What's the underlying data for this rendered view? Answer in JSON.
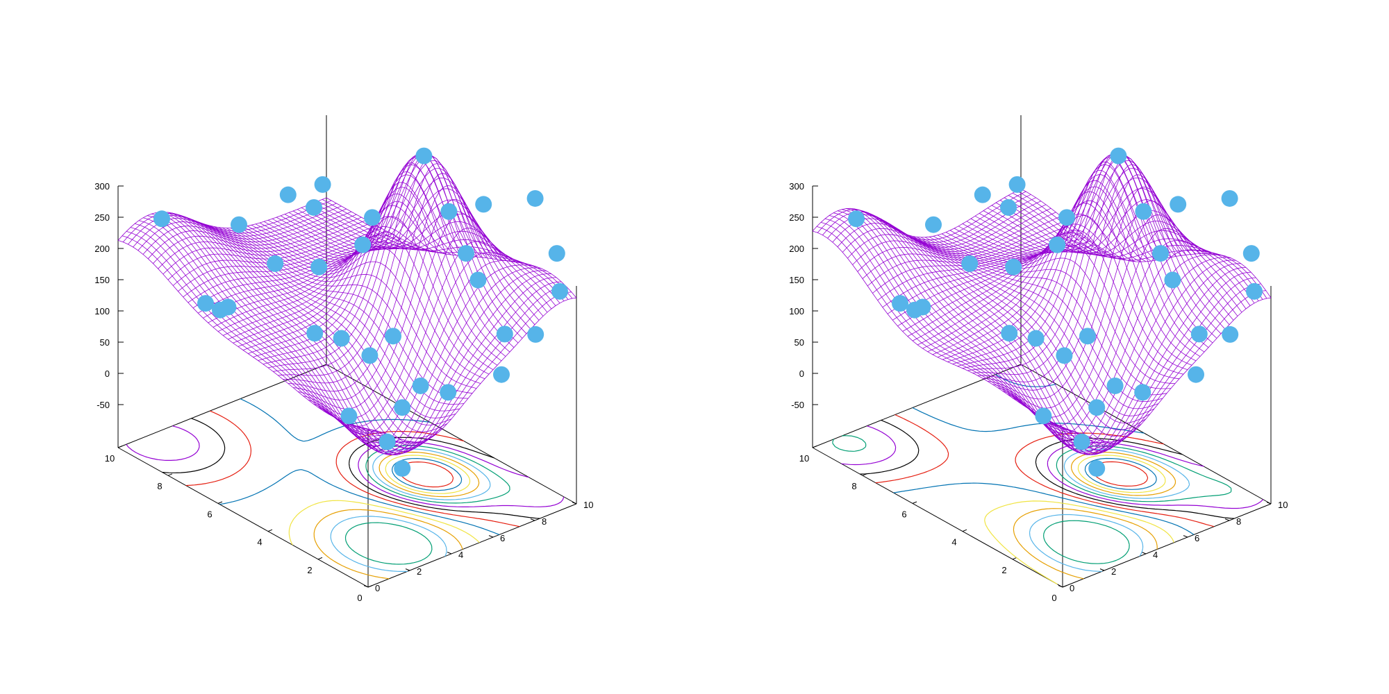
{
  "colors": {
    "surface": "#9400d3",
    "points": "#56b4e9",
    "axis": "#000000",
    "contours": [
      "#009e73",
      "#56b4e9",
      "#e69f00",
      "#f0e442",
      "#0072b2",
      "#e51e10",
      "#000000",
      "#9400d3"
    ]
  },
  "chart_data": [
    {
      "type": "surface",
      "xlim": [
        0,
        10
      ],
      "ylim": [
        0,
        10
      ],
      "zlim": [
        -50,
        300
      ],
      "x_ticks": [
        "0",
        "2",
        "4",
        "6",
        "8",
        "10"
      ],
      "y_ticks": [
        "0",
        "2",
        "4",
        "6",
        "8",
        "10"
      ],
      "z_ticks": [
        "-50",
        "0",
        "50",
        "100",
        "150",
        "200",
        "250",
        "300"
      ],
      "grid": false,
      "contours_on_base": true,
      "surface_style": "mesh",
      "points": [
        {
          "x": 9.0,
          "y": 0.9,
          "z": 150
        },
        {
          "x": 7.0,
          "y": 2.2,
          "z": 168
        },
        {
          "x": 6.2,
          "y": 3.6,
          "z": 215
        },
        {
          "x": 5.4,
          "y": 4.3,
          "z": 240
        },
        {
          "x": 5.5,
          "y": 4.0,
          "z": 205
        },
        {
          "x": 4.3,
          "y": 4.9,
          "z": 160
        },
        {
          "x": 4.5,
          "y": 5.6,
          "z": 190
        },
        {
          "x": 3.6,
          "y": 7.0,
          "z": 290
        },
        {
          "x": 3.6,
          "y": 8.2,
          "z": 185
        },
        {
          "x": 2.8,
          "y": 8.9,
          "z": 205
        },
        {
          "x": 1.4,
          "y": 9.7,
          "z": 235
        },
        {
          "x": 0.7,
          "y": 9.9,
          "z": 160
        },
        {
          "x": 0.5,
          "y": 9.8,
          "z": 105
        },
        {
          "x": 3.0,
          "y": 8.3,
          "z": 130
        },
        {
          "x": 2.6,
          "y": 8.4,
          "z": 95
        },
        {
          "x": 8.0,
          "y": 2.5,
          "z": 5
        },
        {
          "x": 7.6,
          "y": 2.4,
          "z": 20
        },
        {
          "x": 8.0,
          "y": 1.8,
          "z": 25
        },
        {
          "x": 6.8,
          "y": 3.7,
          "z": 90
        },
        {
          "x": 5.8,
          "y": 4.6,
          "z": 95
        },
        {
          "x": 4.8,
          "y": 3.2,
          "z": 30
        },
        {
          "x": 4.4,
          "y": 4.0,
          "z": 20
        },
        {
          "x": 3.5,
          "y": 5.4,
          "z": 25
        },
        {
          "x": 1.2,
          "y": 8.0,
          "z": 45
        },
        {
          "x": 0.8,
          "y": 9.0,
          "z": 40
        },
        {
          "x": 3.6,
          "y": 4.4,
          "z": 5
        },
        {
          "x": 2.4,
          "y": 5.4,
          "z": -30
        },
        {
          "x": 1.8,
          "y": 6.0,
          "z": -35
        },
        {
          "x": 1.0,
          "y": 7.6,
          "z": -10
        },
        {
          "x": 1.8,
          "y": 3.8,
          "z": -30
        },
        {
          "x": 1.4,
          "y": 2.6,
          "z": -60
        },
        {
          "x": 0.3,
          "y": 2.0,
          "z": -70
        },
        {
          "x": 2.6,
          "y": 2.2,
          "z": -40
        }
      ]
    },
    {
      "type": "surface",
      "xlim": [
        0,
        10
      ],
      "ylim": [
        0,
        10
      ],
      "zlim": [
        -50,
        300
      ],
      "x_ticks": [
        "0",
        "2",
        "4",
        "6",
        "8",
        "10"
      ],
      "y_ticks": [
        "0",
        "2",
        "4",
        "6",
        "8",
        "10"
      ],
      "z_ticks": [
        "-50",
        "0",
        "50",
        "100",
        "150",
        "200",
        "250",
        "300"
      ],
      "grid": false,
      "contours_on_base": true,
      "surface_style": "mesh",
      "points": [
        {
          "x": 9.0,
          "y": 0.9,
          "z": 150
        },
        {
          "x": 7.0,
          "y": 2.2,
          "z": 168
        },
        {
          "x": 6.2,
          "y": 3.6,
          "z": 215
        },
        {
          "x": 5.4,
          "y": 4.3,
          "z": 240
        },
        {
          "x": 5.5,
          "y": 4.0,
          "z": 205
        },
        {
          "x": 4.3,
          "y": 4.9,
          "z": 160
        },
        {
          "x": 4.5,
          "y": 5.6,
          "z": 190
        },
        {
          "x": 3.6,
          "y": 7.0,
          "z": 290
        },
        {
          "x": 3.6,
          "y": 8.2,
          "z": 185
        },
        {
          "x": 2.8,
          "y": 8.9,
          "z": 205
        },
        {
          "x": 1.4,
          "y": 9.7,
          "z": 235
        },
        {
          "x": 0.7,
          "y": 9.9,
          "z": 160
        },
        {
          "x": 0.5,
          "y": 9.8,
          "z": 105
        },
        {
          "x": 3.0,
          "y": 8.3,
          "z": 130
        },
        {
          "x": 2.6,
          "y": 8.4,
          "z": 95
        },
        {
          "x": 8.0,
          "y": 2.5,
          "z": 5
        },
        {
          "x": 7.6,
          "y": 2.4,
          "z": 20
        },
        {
          "x": 8.0,
          "y": 1.8,
          "z": 25
        },
        {
          "x": 6.8,
          "y": 3.7,
          "z": 90
        },
        {
          "x": 5.8,
          "y": 4.6,
          "z": 95
        },
        {
          "x": 4.8,
          "y": 3.2,
          "z": 30
        },
        {
          "x": 4.4,
          "y": 4.0,
          "z": 20
        },
        {
          "x": 3.5,
          "y": 5.4,
          "z": 25
        },
        {
          "x": 1.2,
          "y": 8.0,
          "z": 45
        },
        {
          "x": 0.8,
          "y": 9.0,
          "z": 40
        },
        {
          "x": 3.6,
          "y": 4.4,
          "z": 5
        },
        {
          "x": 2.4,
          "y": 5.4,
          "z": -30
        },
        {
          "x": 1.8,
          "y": 6.0,
          "z": -35
        },
        {
          "x": 1.0,
          "y": 7.6,
          "z": -10
        },
        {
          "x": 1.8,
          "y": 3.8,
          "z": -30
        },
        {
          "x": 1.4,
          "y": 2.6,
          "z": -60
        },
        {
          "x": 0.3,
          "y": 2.0,
          "z": -70
        },
        {
          "x": 2.6,
          "y": 2.2,
          "z": -40
        }
      ]
    }
  ]
}
